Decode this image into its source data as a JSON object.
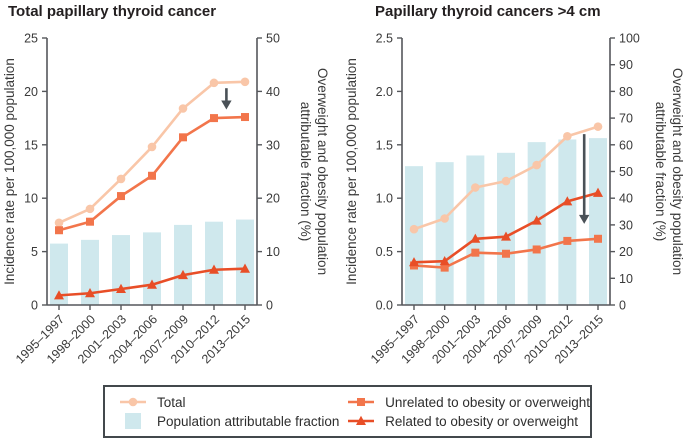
{
  "colors": {
    "total": "#f9c6a8",
    "unrelated": "#f2754b",
    "related": "#e84e27",
    "bar": "#cfe8ed",
    "arrow": "#4a5157",
    "axis": "#55575b",
    "text": "#3a3a3a",
    "title": "#231f20",
    "legend_border": "#43484c"
  },
  "chart_data": [
    {
      "type": "bar+line",
      "title": "Total papillary thyroid cancer",
      "categories": [
        "1995–1997",
        "1998–2000",
        "2001–2003",
        "2004–2006",
        "2007–2009",
        "2010–2012",
        "2013–2015"
      ],
      "left_axis": {
        "label": "Incidence rate per 100,000 population",
        "min": 0,
        "max": 25,
        "tick_values": [
          0,
          5,
          10,
          15,
          20,
          25
        ],
        "tick_labels": [
          "0",
          "5",
          "10",
          "15",
          "20",
          "25"
        ]
      },
      "right_axis": {
        "label": "Overweight and obesity population attributable fraction (%)",
        "label_lines": [
          "Overweight and obesity population",
          "attributable fraction (%)"
        ],
        "min": 0,
        "max": 50,
        "tick_values": [
          0,
          10,
          20,
          30,
          40,
          50
        ],
        "tick_labels": [
          "0",
          "10",
          "20",
          "30",
          "40",
          "50"
        ]
      },
      "bars": {
        "name": "Population attributable fraction",
        "axis": "right",
        "values": [
          11.5,
          12.2,
          13.1,
          13.6,
          15.0,
          15.6,
          16.0
        ]
      },
      "series": [
        {
          "name": "Total",
          "marker": "circle",
          "color_key": "total",
          "axis": "left",
          "values": [
            7.7,
            9.0,
            11.8,
            14.8,
            18.4,
            20.8,
            20.9
          ]
        },
        {
          "name": "Unrelated to obesity or overweight",
          "marker": "square",
          "color_key": "unrelated",
          "axis": "left",
          "values": [
            7.0,
            7.8,
            10.2,
            12.1,
            15.7,
            17.5,
            17.6
          ]
        },
        {
          "name": "Related to obesity or overweight",
          "marker": "triangle",
          "color_key": "related",
          "axis": "left",
          "values": [
            0.9,
            1.1,
            1.5,
            1.9,
            2.8,
            3.3,
            3.4
          ]
        }
      ],
      "annotation_arrow": {
        "x_index": 5.4,
        "from": 20.3,
        "to": 18.3,
        "axis": "left"
      }
    },
    {
      "type": "bar+line",
      "title": "Papillary thyroid cancers >4 cm",
      "categories": [
        "1995–1997",
        "1998–2000",
        "2001–2003",
        "2004–2006",
        "2007–2009",
        "2010–2012",
        "2013–2015"
      ],
      "left_axis": {
        "label": "Incidence rate per 100,000 population",
        "min": 0,
        "max": 2.5,
        "tick_values": [
          0,
          0.5,
          1.0,
          1.5,
          2.0,
          2.5
        ],
        "tick_labels": [
          "0.0",
          "0.5",
          "1.0",
          "1.5",
          "2.0",
          "2.5"
        ]
      },
      "right_axis": {
        "label": "Overweight and obesity population attributable fraction (%)",
        "label_lines": [
          "Overweight and obesity population",
          "attributable fraction (%)"
        ],
        "min": 0,
        "max": 100,
        "tick_values": [
          0,
          10,
          20,
          30,
          40,
          50,
          60,
          70,
          80,
          90,
          100
        ],
        "tick_labels": [
          "0",
          "10",
          "20",
          "30",
          "40",
          "50",
          "60",
          "70",
          "80",
          "90",
          "100"
        ]
      },
      "bars": {
        "name": "Population attributable fraction",
        "axis": "right",
        "values": [
          52,
          53.5,
          56,
          57,
          61,
          62,
          62.5
        ]
      },
      "series": [
        {
          "name": "Total",
          "marker": "circle",
          "color_key": "total",
          "axis": "left",
          "values": [
            0.71,
            0.81,
            1.1,
            1.16,
            1.31,
            1.58,
            1.67
          ]
        },
        {
          "name": "Unrelated to obesity or overweight",
          "marker": "square",
          "color_key": "unrelated",
          "axis": "left",
          "values": [
            0.37,
            0.35,
            0.49,
            0.48,
            0.52,
            0.6,
            0.62
          ]
        },
        {
          "name": "Related to obesity or overweight",
          "marker": "triangle",
          "color_key": "related",
          "axis": "left",
          "values": [
            0.4,
            0.41,
            0.62,
            0.64,
            0.79,
            0.97,
            1.05
          ]
        }
      ],
      "annotation_arrow": {
        "x_index": 5.55,
        "from": 1.6,
        "to": 0.76,
        "axis": "left"
      }
    }
  ],
  "legend": {
    "items": [
      {
        "label": "Total",
        "swatch": "line-circle",
        "color_key": "total"
      },
      {
        "label": "Population attributable fraction",
        "swatch": "square",
        "color_key": "bar"
      },
      {
        "label": "Unrelated to obesity or overweight",
        "swatch": "line-square",
        "color_key": "unrelated"
      },
      {
        "label": "Related to obesity or overweight",
        "swatch": "line-triangle",
        "color_key": "related"
      }
    ]
  }
}
